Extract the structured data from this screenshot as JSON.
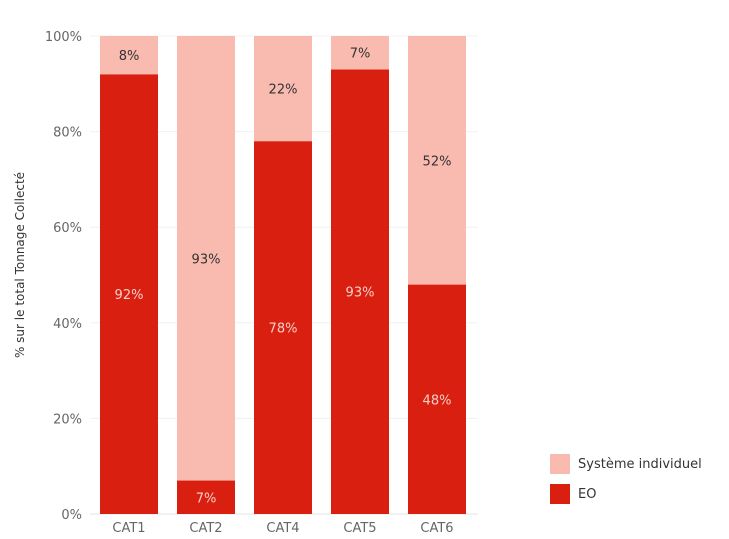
{
  "chart_data": {
    "type": "bar",
    "stacked": true,
    "categories": [
      "CAT1",
      "CAT2",
      "CAT4",
      "CAT5",
      "CAT6"
    ],
    "series": [
      {
        "name": "EO",
        "values": [
          92,
          7,
          78,
          93,
          48
        ],
        "labels": [
          "92%",
          "7%",
          "78%",
          "93%",
          "48%"
        ],
        "color": "#d92010",
        "label_color": "#f8cfc6"
      },
      {
        "name": "Système individuel",
        "values": [
          8,
          93,
          22,
          7,
          52
        ],
        "labels": [
          "8%",
          "93%",
          "22%",
          "7%",
          "52%"
        ],
        "color": "#f9bbb0",
        "label_color": "#333333"
      }
    ],
    "ylabel": "% sur le total Tonnage Collecté",
    "ylim": [
      0,
      100
    ],
    "yticks": [
      0,
      20,
      40,
      60,
      80,
      100
    ],
    "ytick_labels": [
      "0%",
      "20%",
      "40%",
      "60%",
      "80%",
      "100%"
    ],
    "grid": true,
    "legend_position": "bottom-right"
  },
  "legend": [
    {
      "label": "Système individuel",
      "color": "#f9bbb0"
    },
    {
      "label": "EO",
      "color": "#d92010"
    }
  ]
}
